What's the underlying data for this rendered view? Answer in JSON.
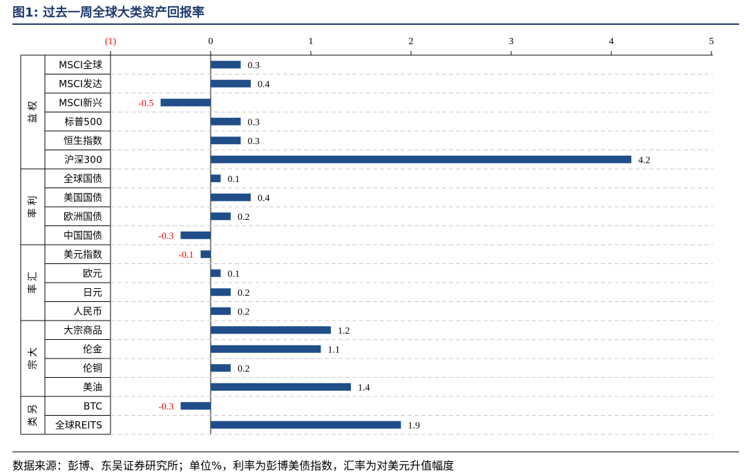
{
  "title": "图1:  过去一周全球大类资产回报率",
  "source": "数据来源：彭博、东吴证券研究所；单位%，利率为彭博美债指数，汇率为对美元升值幅度",
  "colors": {
    "bar": "#1f4e89",
    "negative_label": "#ff0000",
    "title": "#1f3b6f"
  },
  "chart_data": {
    "type": "bar",
    "orientation": "horizontal",
    "xlim": [
      -1,
      5
    ],
    "xticks": [
      {
        "value": -1,
        "label": "(1)",
        "color": "#ff0000"
      },
      {
        "value": 0,
        "label": "0"
      },
      {
        "value": 1,
        "label": "1"
      },
      {
        "value": 2,
        "label": "2"
      },
      {
        "value": 3,
        "label": "3"
      },
      {
        "value": 4,
        "label": "4"
      },
      {
        "value": 5,
        "label": "5"
      }
    ],
    "axis_position": "top",
    "grid": "dashed horizontal",
    "groups": [
      {
        "name": "权益",
        "categories": [
          "MSCI全球",
          "MSCI发达",
          "MSCI新兴",
          "标普500",
          "恒生指数",
          "沪深300"
        ],
        "values": [
          0.3,
          0.4,
          -0.5,
          0.3,
          0.3,
          4.2
        ],
        "labels": [
          "0.3",
          "0.4",
          "-0.5",
          "0.3",
          "0.3",
          "4.2"
        ]
      },
      {
        "name": "利率",
        "categories": [
          "全球国债",
          "美国国债",
          "欧洲国债",
          "中国国债"
        ],
        "values": [
          0.1,
          0.4,
          0.2,
          -0.3
        ],
        "labels": [
          "0.1",
          "0.4",
          "0.2",
          "-0.3"
        ]
      },
      {
        "name": "汇率",
        "categories": [
          "美元指数",
          "欧元",
          "日元",
          "人民币"
        ],
        "values": [
          -0.1,
          0.1,
          0.2,
          0.2
        ],
        "labels": [
          "-0.1",
          "0.1",
          "0.2",
          "0.2"
        ]
      },
      {
        "name": "大宗",
        "categories": [
          "大宗商品",
          "伦金",
          "伦铜",
          "美油"
        ],
        "values": [
          1.2,
          1.1,
          0.2,
          1.4
        ],
        "labels": [
          "1.2",
          "1.1",
          "0.2",
          "1.4"
        ]
      },
      {
        "name": "另类",
        "categories": [
          "BTC",
          "全球REITS"
        ],
        "values": [
          -0.3,
          1.9
        ],
        "labels": [
          "-0.3",
          "1.9"
        ]
      }
    ]
  }
}
